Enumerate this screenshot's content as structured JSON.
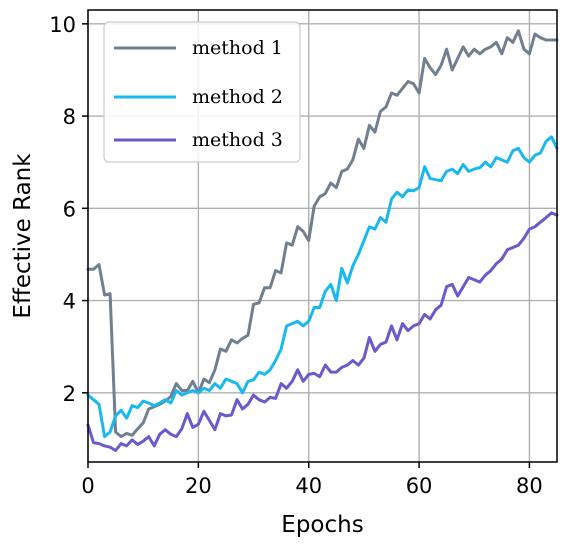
{
  "chart_data": {
    "type": "line",
    "title": "",
    "xlabel": "Epochs",
    "ylabel": "Effective Rank",
    "xlim": [
      0,
      85
    ],
    "ylim": [
      0.5,
      10.3
    ],
    "xticks": [
      0,
      20,
      40,
      60,
      80
    ],
    "yticks": [
      2,
      4,
      6,
      8,
      10
    ],
    "grid": true,
    "legend_position": "top-left",
    "series": [
      {
        "name": "method 1",
        "color": "#708090",
        "x": [
          0,
          1,
          2,
          3,
          4,
          5,
          6,
          7,
          8,
          9,
          10,
          11,
          12,
          13,
          14,
          15,
          16,
          17,
          18,
          19,
          20,
          21,
          22,
          23,
          24,
          25,
          26,
          27,
          28,
          29,
          30,
          31,
          32,
          33,
          34,
          35,
          36,
          37,
          38,
          39,
          40,
          41,
          42,
          43,
          44,
          45,
          46,
          47,
          48,
          49,
          50,
          51,
          52,
          53,
          54,
          55,
          56,
          57,
          58,
          59,
          60,
          61,
          62,
          63,
          64,
          65,
          66,
          67,
          68,
          69,
          70,
          71,
          72,
          73,
          74,
          75,
          76,
          77,
          78,
          79,
          80,
          81,
          82,
          83,
          84,
          85
        ],
        "y": [
          4.68,
          4.68,
          4.78,
          4.12,
          4.15,
          1.15,
          1.05,
          1.12,
          1.08,
          1.22,
          1.35,
          1.65,
          1.7,
          1.75,
          1.82,
          1.92,
          2.2,
          2.05,
          2.05,
          2.25,
          2.0,
          2.3,
          2.22,
          2.5,
          2.95,
          2.9,
          3.15,
          3.08,
          3.18,
          3.25,
          3.92,
          3.95,
          4.28,
          4.28,
          4.65,
          4.6,
          5.25,
          5.2,
          5.6,
          5.5,
          5.3,
          6.05,
          6.25,
          6.32,
          6.55,
          6.45,
          6.8,
          6.85,
          7.05,
          7.5,
          7.3,
          7.8,
          7.65,
          8.1,
          8.2,
          8.5,
          8.45,
          8.6,
          8.75,
          8.7,
          8.5,
          9.25,
          9.05,
          8.9,
          9.1,
          9.45,
          9.0,
          9.25,
          9.5,
          9.3,
          9.45,
          9.35,
          9.45,
          9.5,
          9.6,
          9.35,
          9.7,
          9.6,
          9.85,
          9.45,
          9.35,
          9.78,
          9.7,
          9.65,
          9.65,
          9.65
        ]
      },
      {
        "name": "method 2",
        "color": "#1ab8f0",
        "x": [
          0,
          1,
          2,
          3,
          4,
          5,
          6,
          7,
          8,
          9,
          10,
          11,
          12,
          13,
          14,
          15,
          16,
          17,
          18,
          19,
          20,
          21,
          22,
          23,
          24,
          25,
          26,
          27,
          28,
          29,
          30,
          31,
          32,
          33,
          34,
          35,
          36,
          37,
          38,
          39,
          40,
          41,
          42,
          43,
          44,
          45,
          46,
          47,
          48,
          49,
          50,
          51,
          52,
          53,
          54,
          55,
          56,
          57,
          58,
          59,
          60,
          61,
          62,
          63,
          64,
          65,
          66,
          67,
          68,
          69,
          70,
          71,
          72,
          73,
          74,
          75,
          76,
          77,
          78,
          79,
          80,
          81,
          82,
          83,
          84,
          85
        ],
        "y": [
          1.95,
          1.85,
          1.75,
          1.05,
          1.15,
          1.5,
          1.62,
          1.45,
          1.72,
          1.68,
          1.82,
          1.78,
          1.72,
          1.78,
          1.85,
          1.78,
          2.05,
          1.95,
          2.0,
          2.05,
          2.0,
          2.1,
          2.05,
          2.2,
          2.1,
          2.3,
          2.25,
          2.2,
          2.0,
          2.25,
          2.28,
          2.45,
          2.4,
          2.5,
          2.7,
          2.95,
          3.45,
          3.5,
          3.55,
          3.45,
          3.55,
          3.85,
          3.85,
          4.2,
          4.35,
          4.0,
          4.7,
          4.38,
          4.75,
          5.0,
          5.3,
          5.6,
          5.55,
          5.8,
          5.7,
          6.2,
          6.35,
          6.25,
          6.4,
          6.38,
          6.45,
          6.9,
          6.65,
          6.62,
          6.6,
          6.8,
          6.85,
          6.75,
          6.95,
          6.8,
          6.85,
          6.88,
          7.0,
          6.9,
          7.1,
          7.05,
          7.0,
          7.25,
          7.3,
          7.1,
          7.0,
          7.15,
          7.2,
          7.45,
          7.55,
          7.3
        ]
      },
      {
        "name": "method 3",
        "color": "#6a5acd",
        "x": [
          0,
          1,
          2,
          3,
          4,
          5,
          6,
          7,
          8,
          9,
          10,
          11,
          12,
          13,
          14,
          15,
          16,
          17,
          18,
          19,
          20,
          21,
          22,
          23,
          24,
          25,
          26,
          27,
          28,
          29,
          30,
          31,
          32,
          33,
          34,
          35,
          36,
          37,
          38,
          39,
          40,
          41,
          42,
          43,
          44,
          45,
          46,
          47,
          48,
          49,
          50,
          51,
          52,
          53,
          54,
          55,
          56,
          57,
          58,
          59,
          60,
          61,
          62,
          63,
          64,
          65,
          66,
          67,
          68,
          69,
          70,
          71,
          72,
          73,
          74,
          75,
          76,
          77,
          78,
          79,
          80,
          81,
          82,
          83,
          84,
          85
        ],
        "y": [
          1.3,
          0.92,
          0.9,
          0.85,
          0.82,
          0.75,
          0.9,
          0.85,
          0.98,
          0.88,
          0.95,
          1.05,
          0.85,
          1.1,
          1.2,
          1.1,
          1.05,
          1.22,
          1.55,
          1.25,
          1.32,
          1.6,
          1.4,
          1.2,
          1.55,
          1.5,
          1.52,
          1.85,
          1.65,
          1.75,
          1.95,
          1.85,
          1.8,
          1.9,
          1.88,
          2.2,
          2.1,
          2.25,
          2.5,
          2.25,
          2.4,
          2.42,
          2.35,
          2.6,
          2.45,
          2.45,
          2.55,
          2.6,
          2.7,
          2.6,
          2.75,
          3.2,
          2.9,
          3.05,
          3.1,
          3.45,
          3.15,
          3.5,
          3.35,
          3.45,
          3.5,
          3.7,
          3.6,
          3.8,
          3.9,
          4.3,
          4.35,
          4.1,
          4.3,
          4.5,
          4.45,
          4.4,
          4.55,
          4.65,
          4.8,
          4.9,
          5.1,
          5.15,
          5.2,
          5.35,
          5.55,
          5.6,
          5.7,
          5.8,
          5.9,
          5.85
        ]
      }
    ]
  }
}
